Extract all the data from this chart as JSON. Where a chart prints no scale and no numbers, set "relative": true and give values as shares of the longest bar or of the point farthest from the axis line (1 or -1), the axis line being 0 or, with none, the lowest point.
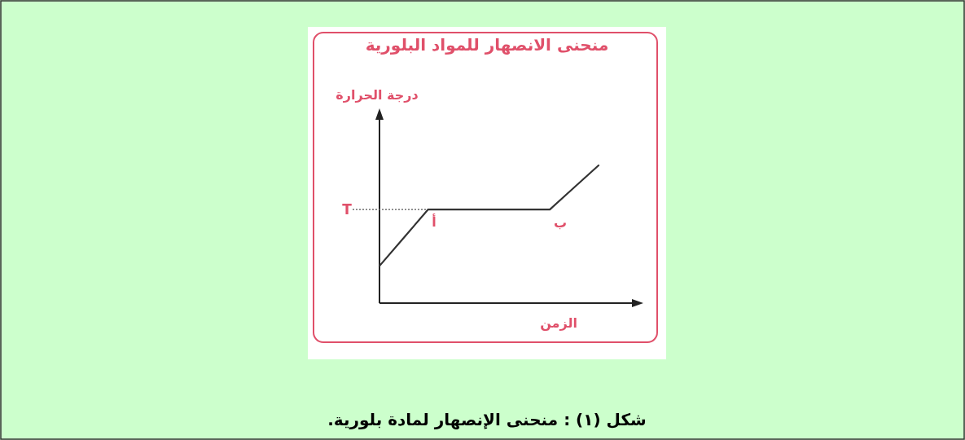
{
  "chart_data": {
    "type": "line",
    "title": "منحنى الانصهار للمواد البلورية",
    "xlabel": "الزمن",
    "ylabel": "درجة الحرارة",
    "relative": true,
    "categories": [
      null,
      null,
      null,
      null,
      null,
      null,
      null,
      null,
      null,
      null
    ],
    "series": [
      {
        "color": "#333333",
        "values": [
          0.27,
          0.475,
          0.68,
          0.68,
          0.68,
          0.68,
          0.68,
          0.68,
          0.84,
          1
        ]
      }
    ],
    "ref_lines": [
      {
        "axis": "y",
        "value": 0.68,
        "label": "T",
        "color": "#555555",
        "line_style": "dotted"
      }
    ],
    "annotations": [
      "أ",
      "ب",
      "شكل (١) : منحنى الإنصهار لمادة بلورية."
    ]
  }
}
